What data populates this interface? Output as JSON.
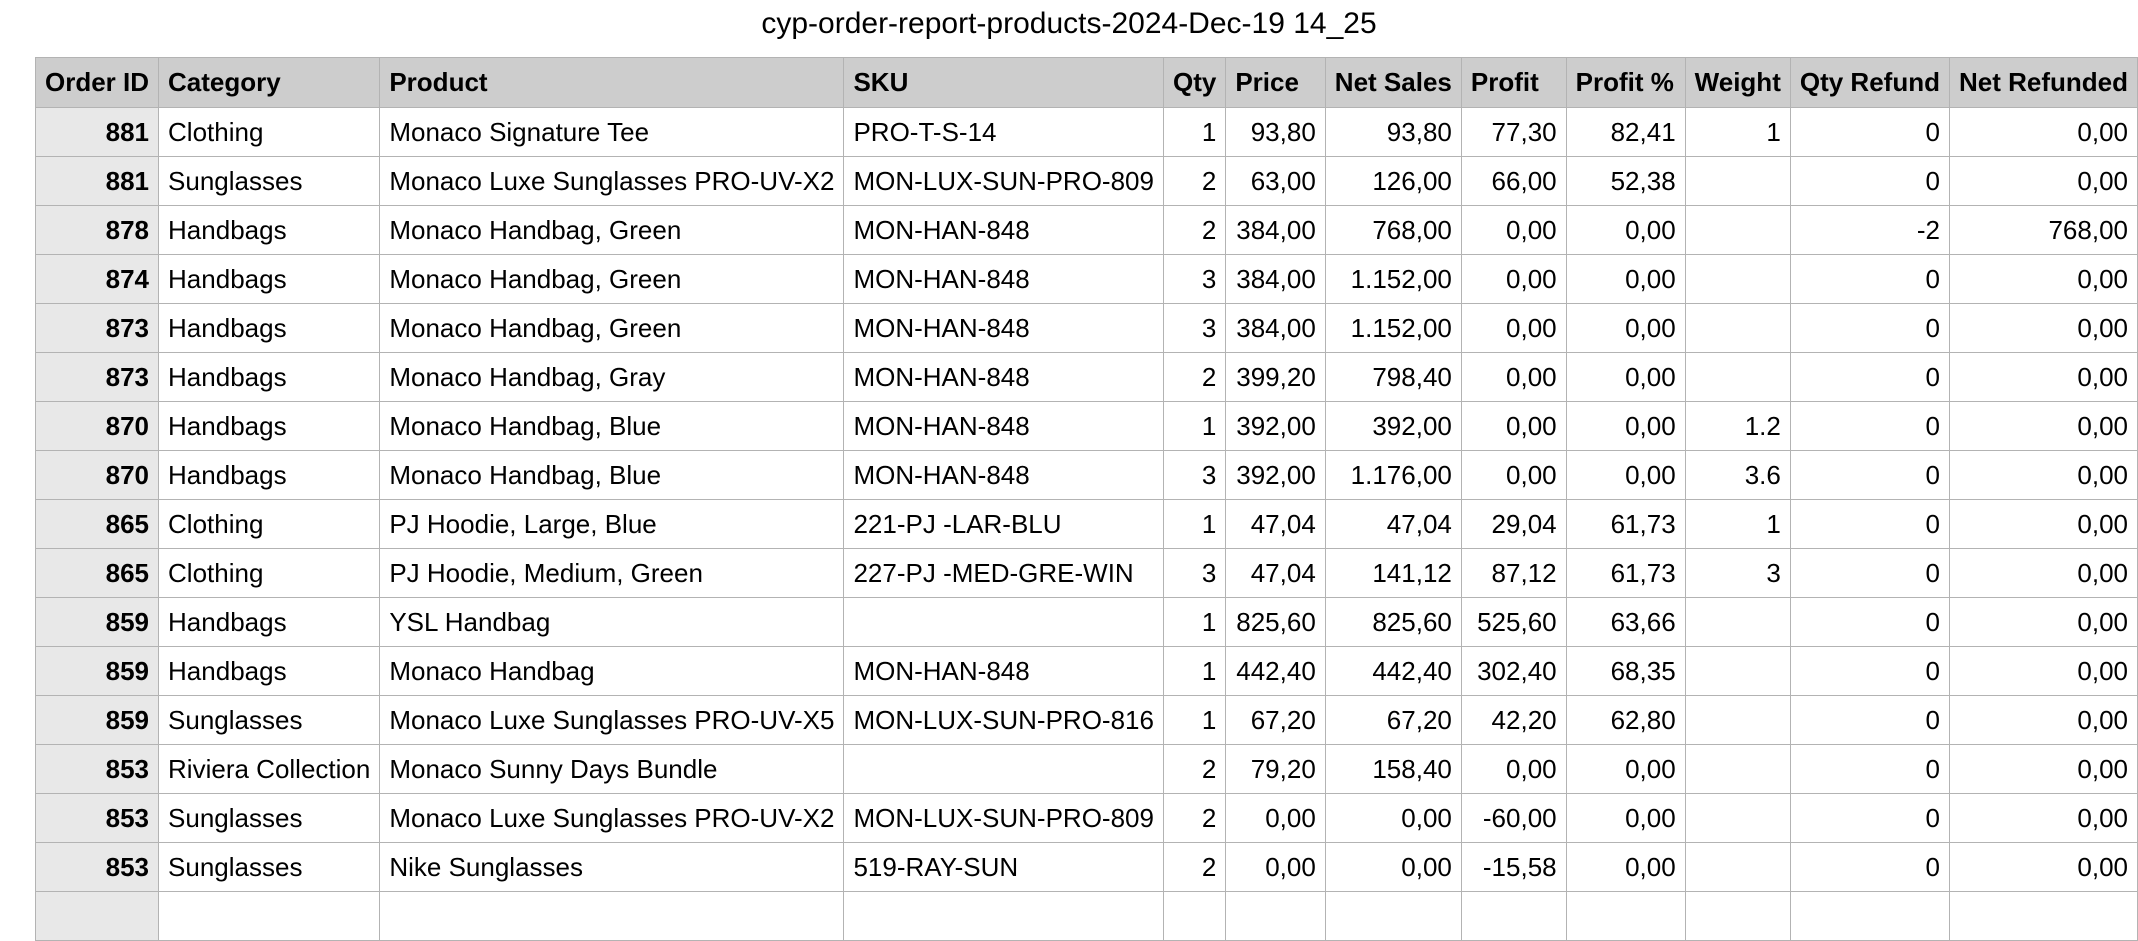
{
  "title": "cyp-order-report-products-2024-Dec-19 14_25",
  "columns": [
    "Order ID",
    "Category",
    "Product",
    "SKU",
    "Qty",
    "Price",
    "Net Sales",
    "Profit",
    "Profit %",
    "Weight",
    "Qty Refund",
    "Net Refunded"
  ],
  "rows": [
    [
      "881",
      "Clothing",
      "Monaco Signature Tee",
      "PRO-T-S-14",
      "1",
      "93,80",
      "93,80",
      "77,30",
      "82,41",
      "1",
      "0",
      "0,00"
    ],
    [
      "881",
      "Sunglasses",
      "Monaco Luxe Sunglasses PRO-UV-X2",
      "MON-LUX-SUN-PRO-809",
      "2",
      "63,00",
      "126,00",
      "66,00",
      "52,38",
      "",
      "0",
      "0,00"
    ],
    [
      "878",
      "Handbags",
      "Monaco Handbag, Green",
      "MON-HAN-848",
      "2",
      "384,00",
      "768,00",
      "0,00",
      "0,00",
      "",
      "-2",
      "768,00"
    ],
    [
      "874",
      "Handbags",
      "Monaco Handbag, Green",
      "MON-HAN-848",
      "3",
      "384,00",
      "1.152,00",
      "0,00",
      "0,00",
      "",
      "0",
      "0,00"
    ],
    [
      "873",
      "Handbags",
      "Monaco Handbag, Green",
      "MON-HAN-848",
      "3",
      "384,00",
      "1.152,00",
      "0,00",
      "0,00",
      "",
      "0",
      "0,00"
    ],
    [
      "873",
      "Handbags",
      "Monaco Handbag, Gray",
      "MON-HAN-848",
      "2",
      "399,20",
      "798,40",
      "0,00",
      "0,00",
      "",
      "0",
      "0,00"
    ],
    [
      "870",
      "Handbags",
      "Monaco Handbag, Blue",
      "MON-HAN-848",
      "1",
      "392,00",
      "392,00",
      "0,00",
      "0,00",
      "1.2",
      "0",
      "0,00"
    ],
    [
      "870",
      "Handbags",
      "Monaco Handbag, Blue",
      "MON-HAN-848",
      "3",
      "392,00",
      "1.176,00",
      "0,00",
      "0,00",
      "3.6",
      "0",
      "0,00"
    ],
    [
      "865",
      "Clothing",
      "PJ Hoodie, Large, Blue",
      "221-PJ -LAR-BLU",
      "1",
      "47,04",
      "47,04",
      "29,04",
      "61,73",
      "1",
      "0",
      "0,00"
    ],
    [
      "865",
      "Clothing",
      "PJ Hoodie, Medium, Green",
      "227-PJ -MED-GRE-WIN",
      "3",
      "47,04",
      "141,12",
      "87,12",
      "61,73",
      "3",
      "0",
      "0,00"
    ],
    [
      "859",
      "Handbags",
      "YSL Handbag",
      "",
      "1",
      "825,60",
      "825,60",
      "525,60",
      "63,66",
      "",
      "0",
      "0,00"
    ],
    [
      "859",
      "Handbags",
      "Monaco Handbag",
      "MON-HAN-848",
      "1",
      "442,40",
      "442,40",
      "302,40",
      "68,35",
      "",
      "0",
      "0,00"
    ],
    [
      "859",
      "Sunglasses",
      "Monaco Luxe Sunglasses PRO-UV-X5",
      "MON-LUX-SUN-PRO-816",
      "1",
      "67,20",
      "67,20",
      "42,20",
      "62,80",
      "",
      "0",
      "0,00"
    ],
    [
      "853",
      "Riviera Collection",
      "Monaco Sunny Days Bundle",
      "",
      "2",
      "79,20",
      "158,40",
      "0,00",
      "0,00",
      "",
      "0",
      "0,00"
    ],
    [
      "853",
      "Sunglasses",
      "Monaco Luxe Sunglasses PRO-UV-X2",
      "MON-LUX-SUN-PRO-809",
      "2",
      "0,00",
      "0,00",
      "-60,00",
      "0,00",
      "",
      "0",
      "0,00"
    ],
    [
      "853",
      "Sunglasses",
      "Nike Sunglasses",
      "519-RAY-SUN",
      "2",
      "0,00",
      "0,00",
      "-15,58",
      "0,00",
      "",
      "0",
      "0,00"
    ],
    [
      "",
      "",
      "",
      "",
      "",
      "",
      "",
      "",
      "",
      "",
      "",
      ""
    ]
  ]
}
